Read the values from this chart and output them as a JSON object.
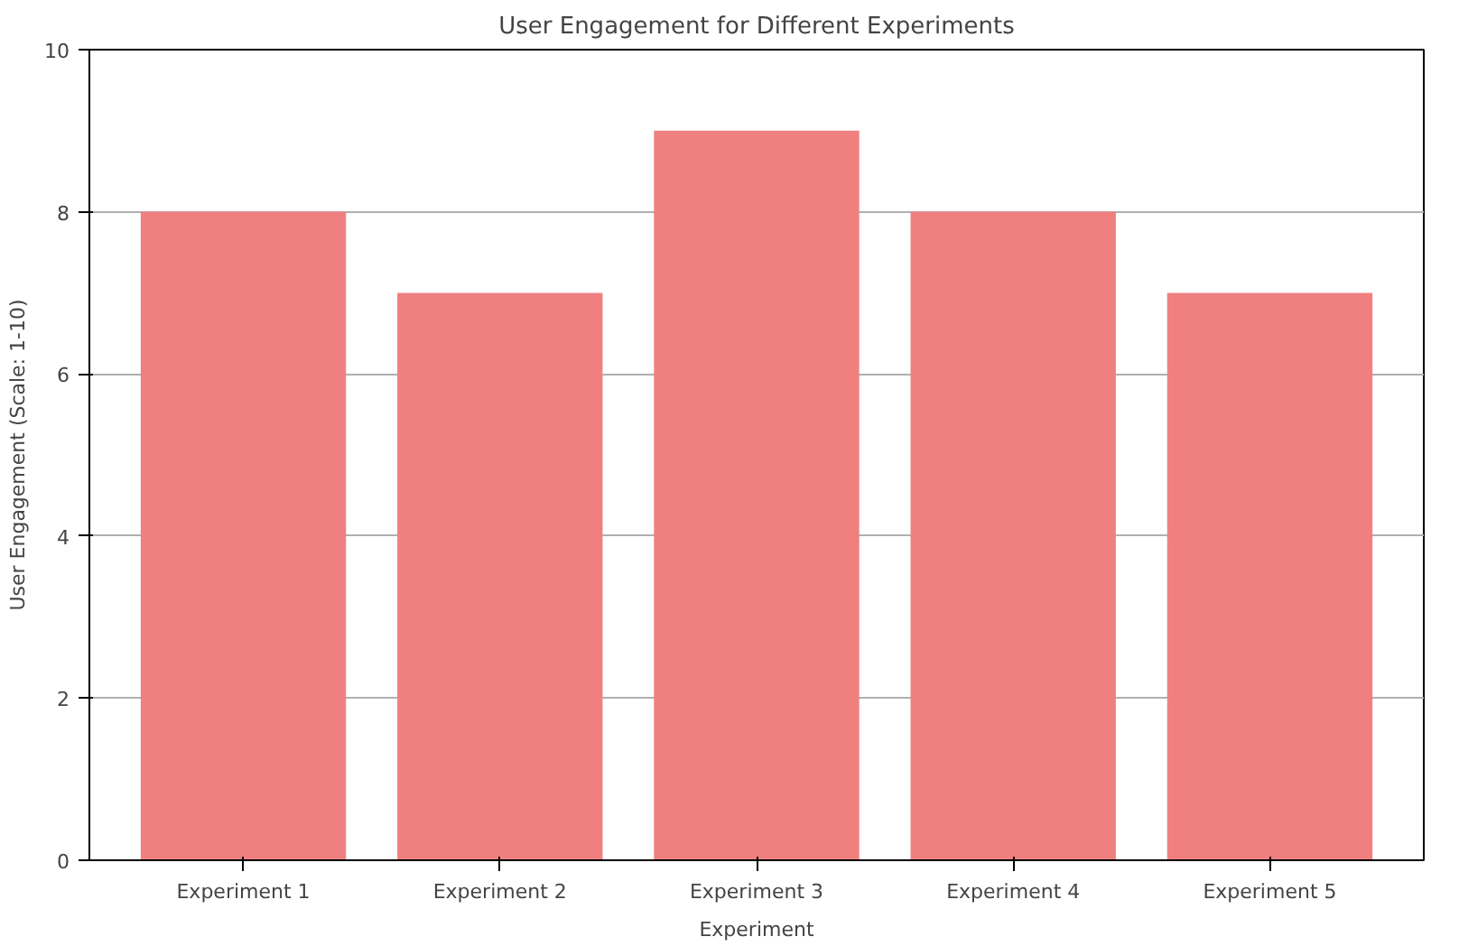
{
  "chart_data": {
    "type": "bar",
    "title": "User Engagement for Different Experiments",
    "xlabel": "Experiment",
    "ylabel": "User Engagement (Scale: 1-10)",
    "categories": [
      "Experiment 1",
      "Experiment 2",
      "Experiment 3",
      "Experiment 4",
      "Experiment 5"
    ],
    "values": [
      8,
      7,
      9,
      8,
      7
    ],
    "color": "#f08080",
    "ylim": [
      0,
      10
    ],
    "yticks": [
      0,
      2,
      4,
      6,
      8,
      10
    ],
    "grid": "y"
  }
}
